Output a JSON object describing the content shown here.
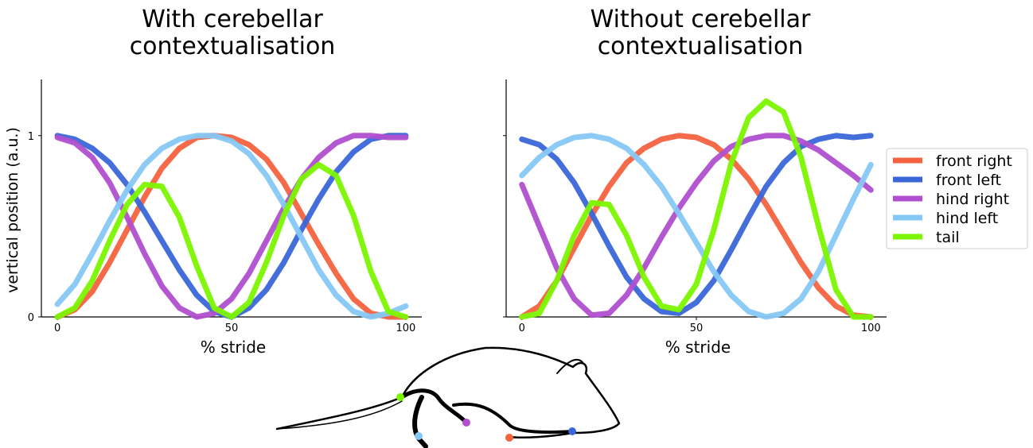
{
  "chart_data": [
    {
      "type": "line",
      "title": "With cerebellar contextualisation",
      "xlabel": "% stride",
      "ylabel": "vertical position (a.u.)",
      "x": [
        0,
        5,
        10,
        15,
        20,
        25,
        30,
        35,
        40,
        45,
        50,
        55,
        60,
        65,
        70,
        75,
        80,
        85,
        90,
        95,
        100
      ],
      "xlim": [
        -4.6,
        104.6
      ],
      "ylim": [
        0,
        1.31
      ],
      "xticks": [
        0,
        50,
        100
      ],
      "yticks": [
        0,
        1
      ],
      "ytick_labels": true,
      "series": [
        {
          "name": "front right",
          "color": "#f4623f",
          "values": [
            0,
            0.04,
            0.14,
            0.3,
            0.48,
            0.66,
            0.82,
            0.93,
            0.99,
            1.0,
            0.99,
            0.95,
            0.87,
            0.74,
            0.57,
            0.4,
            0.24,
            0.1,
            0.02,
            0,
            0
          ]
        },
        {
          "name": "front left",
          "color": "#3a66d8",
          "values": [
            1.0,
            0.98,
            0.93,
            0.85,
            0.73,
            0.58,
            0.42,
            0.26,
            0.12,
            0.03,
            0.0,
            0.05,
            0.15,
            0.3,
            0.48,
            0.65,
            0.8,
            0.91,
            0.98,
            1.0,
            1.0
          ]
        },
        {
          "name": "hind right",
          "color": "#b04fd0",
          "values": [
            0.99,
            0.96,
            0.88,
            0.74,
            0.55,
            0.35,
            0.17,
            0.05,
            0.0,
            0.02,
            0.1,
            0.24,
            0.42,
            0.6,
            0.76,
            0.88,
            0.96,
            1.0,
            1.0,
            0.99,
            0.99
          ]
        },
        {
          "name": "hind left",
          "color": "#86c8f5",
          "values": [
            0.07,
            0.18,
            0.35,
            0.53,
            0.7,
            0.84,
            0.93,
            0.98,
            1.0,
            1.0,
            0.97,
            0.9,
            0.78,
            0.62,
            0.44,
            0.26,
            0.12,
            0.03,
            0.0,
            0.02,
            0.06
          ]
        },
        {
          "name": "tail",
          "color": "#7cf500",
          "values": [
            0.0,
            0.05,
            0.2,
            0.42,
            0.62,
            0.73,
            0.72,
            0.55,
            0.28,
            0.05,
            0.0,
            0.08,
            0.3,
            0.56,
            0.76,
            0.84,
            0.78,
            0.56,
            0.25,
            0.03,
            0
          ]
        }
      ]
    },
    {
      "type": "line",
      "title": "Without cerebellar contextualisation",
      "xlabel": "% stride",
      "x": [
        0,
        5,
        10,
        15,
        20,
        25,
        30,
        35,
        40,
        45,
        50,
        55,
        60,
        65,
        70,
        75,
        80,
        85,
        90,
        95,
        100
      ],
      "xlim": [
        -4.5,
        104.5
      ],
      "ylim": [
        0,
        1.31
      ],
      "xticks": [
        0,
        50,
        100
      ],
      "yticks": [
        0,
        1
      ],
      "ytick_labels": false,
      "legend": "outside right",
      "series": [
        {
          "name": "front right",
          "color": "#f4623f",
          "values": [
            0,
            0.06,
            0.2,
            0.38,
            0.56,
            0.72,
            0.85,
            0.93,
            0.98,
            1.0,
            0.99,
            0.95,
            0.87,
            0.76,
            0.62,
            0.46,
            0.3,
            0.16,
            0.06,
            0.01,
            0
          ]
        },
        {
          "name": "front left",
          "color": "#3a66d8",
          "values": [
            0.98,
            0.95,
            0.87,
            0.74,
            0.57,
            0.39,
            0.22,
            0.1,
            0.03,
            0.02,
            0.08,
            0.2,
            0.37,
            0.55,
            0.72,
            0.85,
            0.94,
            0.98,
            1.0,
            0.99,
            1.0
          ]
        },
        {
          "name": "hind right",
          "color": "#b04fd0",
          "values": [
            0.73,
            0.5,
            0.27,
            0.1,
            0.01,
            0.02,
            0.12,
            0.27,
            0.44,
            0.6,
            0.74,
            0.86,
            0.94,
            0.98,
            1.0,
            1.0,
            0.97,
            0.92,
            0.85,
            0.78,
            0.7
          ]
        },
        {
          "name": "hind left",
          "color": "#86c8f5",
          "values": [
            0.78,
            0.88,
            0.95,
            0.99,
            1.0,
            0.98,
            0.93,
            0.84,
            0.72,
            0.57,
            0.41,
            0.25,
            0.12,
            0.03,
            0.0,
            0.02,
            0.1,
            0.25,
            0.45,
            0.65,
            0.84
          ]
        },
        {
          "name": "tail",
          "color": "#7cf500",
          "values": [
            0.0,
            0.02,
            0.2,
            0.45,
            0.63,
            0.62,
            0.45,
            0.22,
            0.06,
            0.04,
            0.18,
            0.48,
            0.85,
            1.1,
            1.19,
            1.13,
            0.88,
            0.5,
            0.15,
            0.0,
            0.0
          ]
        }
      ]
    }
  ]
}
